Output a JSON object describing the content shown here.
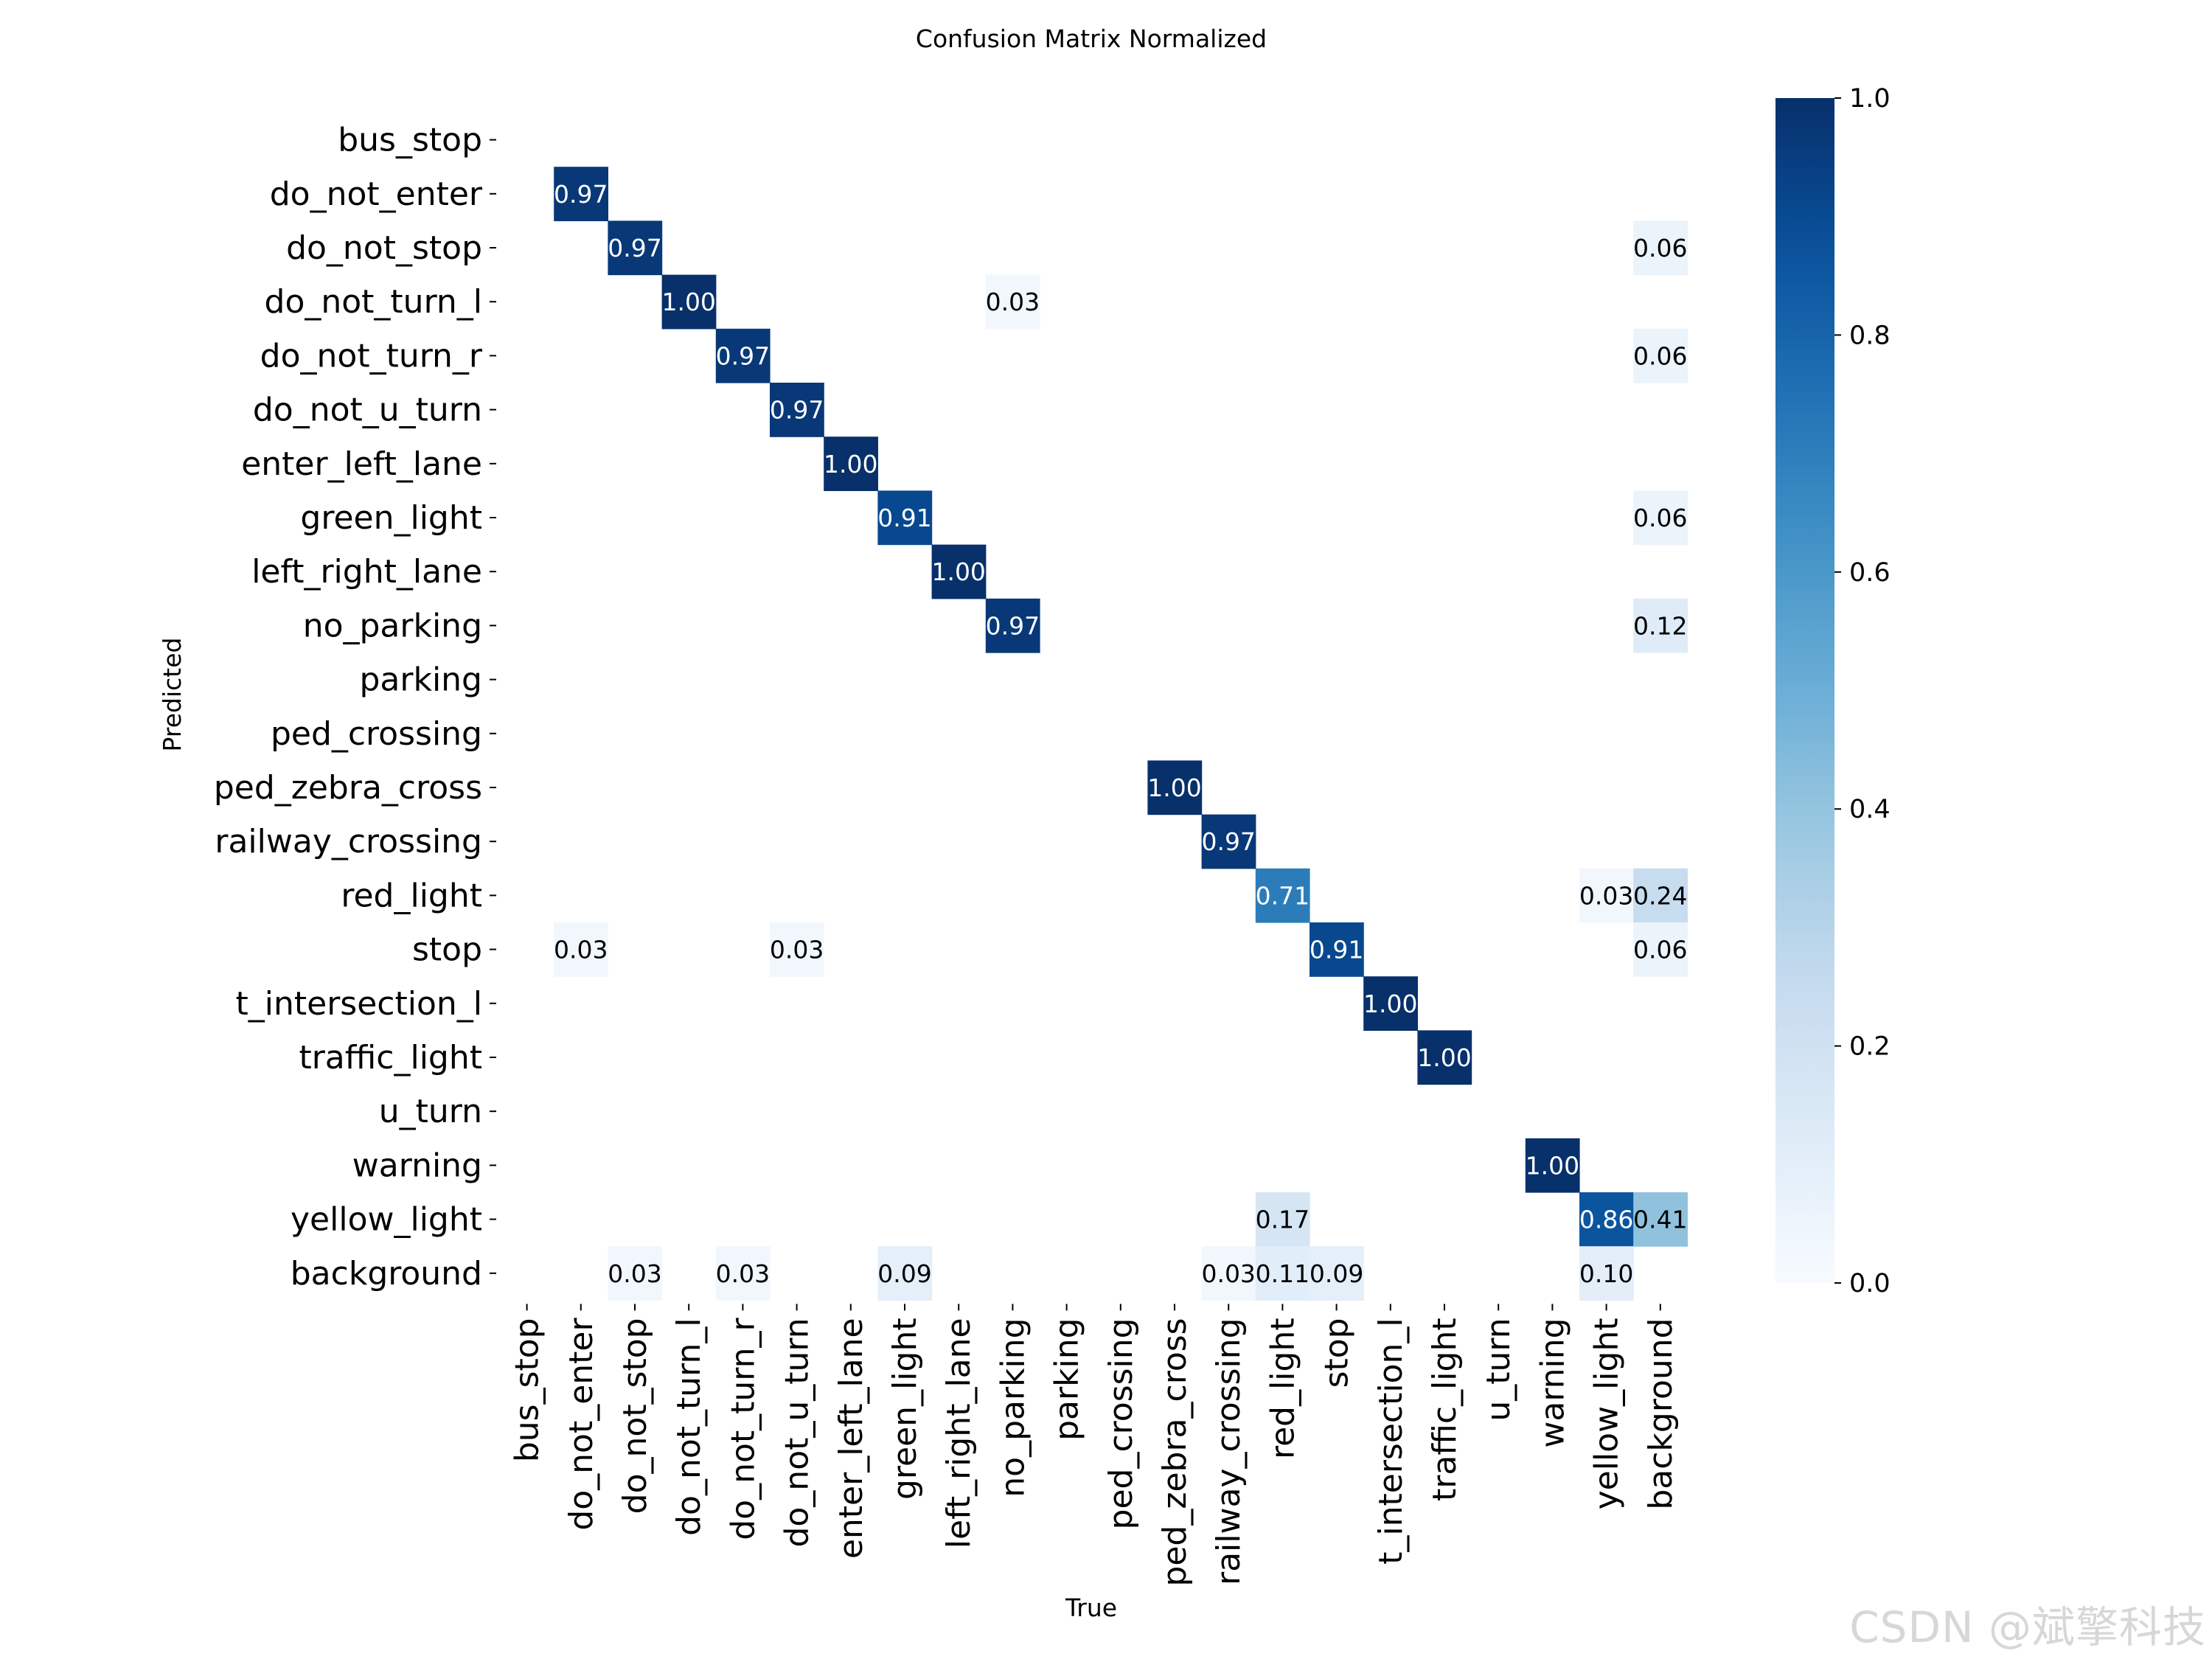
{
  "chart_data": {
    "type": "heatmap",
    "title": "Confusion Matrix Normalized",
    "xlabel": "True",
    "ylabel": "Predicted",
    "x_categories": [
      "bus_stop",
      "do_not_enter",
      "do_not_stop",
      "do_not_turn_l",
      "do_not_turn_r",
      "do_not_u_turn",
      "enter_left_lane",
      "green_light",
      "left_right_lane",
      "no_parking",
      "parking",
      "ped_crossing",
      "ped_zebra_cross",
      "railway_crossing",
      "red_light",
      "stop",
      "t_intersection_l",
      "traffic_light",
      "u_turn",
      "warning",
      "yellow_light",
      "background"
    ],
    "y_categories": [
      "bus_stop",
      "do_not_enter",
      "do_not_stop",
      "do_not_turn_l",
      "do_not_turn_r",
      "do_not_u_turn",
      "enter_left_lane",
      "green_light",
      "left_right_lane",
      "no_parking",
      "parking",
      "ped_crossing",
      "ped_zebra_cross",
      "railway_crossing",
      "red_light",
      "stop",
      "t_intersection_l",
      "traffic_light",
      "u_turn",
      "warning",
      "yellow_light",
      "background"
    ],
    "cells": [
      {
        "row": "do_not_enter",
        "col": "do_not_enter",
        "value": 0.97,
        "label": "0.97"
      },
      {
        "row": "do_not_stop",
        "col": "do_not_stop",
        "value": 0.97,
        "label": "0.97"
      },
      {
        "row": "do_not_stop",
        "col": "background",
        "value": 0.06,
        "label": "0.06"
      },
      {
        "row": "do_not_turn_l",
        "col": "do_not_turn_l",
        "value": 1.0,
        "label": "1.00"
      },
      {
        "row": "do_not_turn_l",
        "col": "no_parking",
        "value": 0.03,
        "label": "0.03"
      },
      {
        "row": "do_not_turn_r",
        "col": "do_not_turn_r",
        "value": 0.97,
        "label": "0.97"
      },
      {
        "row": "do_not_turn_r",
        "col": "background",
        "value": 0.06,
        "label": "0.06"
      },
      {
        "row": "do_not_u_turn",
        "col": "do_not_u_turn",
        "value": 0.97,
        "label": "0.97"
      },
      {
        "row": "enter_left_lane",
        "col": "enter_left_lane",
        "value": 1.0,
        "label": "1.00"
      },
      {
        "row": "green_light",
        "col": "green_light",
        "value": 0.91,
        "label": "0.91"
      },
      {
        "row": "green_light",
        "col": "background",
        "value": 0.06,
        "label": "0.06"
      },
      {
        "row": "left_right_lane",
        "col": "left_right_lane",
        "value": 1.0,
        "label": "1.00"
      },
      {
        "row": "no_parking",
        "col": "no_parking",
        "value": 0.97,
        "label": "0.97"
      },
      {
        "row": "no_parking",
        "col": "background",
        "value": 0.12,
        "label": "0.12"
      },
      {
        "row": "ped_zebra_cross",
        "col": "ped_zebra_cross",
        "value": 1.0,
        "label": "1.00"
      },
      {
        "row": "railway_crossing",
        "col": "railway_crossing",
        "value": 0.97,
        "label": "0.97"
      },
      {
        "row": "red_light",
        "col": "red_light",
        "value": 0.71,
        "label": "0.71"
      },
      {
        "row": "red_light",
        "col": "yellow_light",
        "value": 0.03,
        "label": "0.03"
      },
      {
        "row": "red_light",
        "col": "background",
        "value": 0.24,
        "label": "0.24"
      },
      {
        "row": "stop",
        "col": "do_not_enter",
        "value": 0.03,
        "label": "0.03"
      },
      {
        "row": "stop",
        "col": "do_not_u_turn",
        "value": 0.03,
        "label": "0.03"
      },
      {
        "row": "stop",
        "col": "stop",
        "value": 0.91,
        "label": "0.91"
      },
      {
        "row": "stop",
        "col": "background",
        "value": 0.06,
        "label": "0.06"
      },
      {
        "row": "t_intersection_l",
        "col": "t_intersection_l",
        "value": 1.0,
        "label": "1.00"
      },
      {
        "row": "traffic_light",
        "col": "traffic_light",
        "value": 1.0,
        "label": "1.00"
      },
      {
        "row": "warning",
        "col": "warning",
        "value": 1.0,
        "label": "1.00"
      },
      {
        "row": "yellow_light",
        "col": "red_light",
        "value": 0.17,
        "label": "0.17"
      },
      {
        "row": "yellow_light",
        "col": "yellow_light",
        "value": 0.86,
        "label": "0.86"
      },
      {
        "row": "yellow_light",
        "col": "background",
        "value": 0.41,
        "label": "0.41"
      },
      {
        "row": "background",
        "col": "do_not_stop",
        "value": 0.03,
        "label": "0.03"
      },
      {
        "row": "background",
        "col": "do_not_turn_r",
        "value": 0.03,
        "label": "0.03"
      },
      {
        "row": "background",
        "col": "green_light",
        "value": 0.09,
        "label": "0.09"
      },
      {
        "row": "background",
        "col": "railway_crossing",
        "value": 0.03,
        "label": "0.03"
      },
      {
        "row": "background",
        "col": "red_light",
        "value": 0.11,
        "label": "0.11"
      },
      {
        "row": "background",
        "col": "stop",
        "value": 0.09,
        "label": "0.09"
      },
      {
        "row": "background",
        "col": "yellow_light",
        "value": 0.1,
        "label": "0.10"
      }
    ],
    "colorbar": {
      "range": [
        0.0,
        1.0
      ],
      "ticks": [
        0.0,
        0.2,
        0.4,
        0.6,
        0.8,
        1.0
      ],
      "tick_labels": [
        "0.0",
        "0.2",
        "0.4",
        "0.6",
        "0.8",
        "1.0"
      ],
      "colormap": "Blues"
    }
  },
  "watermark": "CSDN @斌擎科技"
}
